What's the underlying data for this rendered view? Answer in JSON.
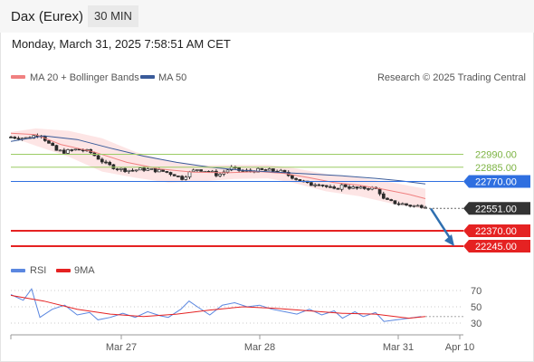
{
  "header": {
    "title": "Dax (Eurex)",
    "interval": "30 MIN",
    "timestamp": "Monday, March 31, 2025 7:58:51 AM CET"
  },
  "legend": {
    "ma20_bb": "MA 20 + Bollinger Bands",
    "ma50": "MA 50",
    "rsi": "RSI",
    "ma9": "9MA",
    "credit": "Research © 2025 Trading Central"
  },
  "colors": {
    "ma20": "#f08080",
    "bollinger_fill": "#fde0e0",
    "ma50": "#3a5b9a",
    "candle": "#2b2b2b",
    "pivot": "#2f6fe0",
    "resistance": "#9ccc65",
    "resistance_text": "#7cb342",
    "support": "#e52222",
    "current": "#333333",
    "forecast_arrow": "#2f6fb0",
    "rsi_line": "#5b87e0",
    "rsi_ma": "#e52222"
  },
  "chart_data": [
    {
      "type": "candlestick",
      "title": "Dax (Eurex)",
      "xlabel": "",
      "ylabel": "",
      "x_ticks": [
        "Mar 27",
        "Mar 28",
        "Mar 31",
        "Apr 10"
      ],
      "ylim": [
        22180,
        23200
      ],
      "levels": [
        {
          "name": "resistance_2",
          "value": 22990.0,
          "label": "22990.00",
          "kind": "resistance"
        },
        {
          "name": "resistance_1",
          "value": 22885.0,
          "label": "22885.00",
          "kind": "resistance"
        },
        {
          "name": "pivot",
          "value": 22770.0,
          "label": "22770.00",
          "kind": "pivot"
        },
        {
          "name": "current",
          "value": 22551.0,
          "label": "22551.00",
          "kind": "current"
        },
        {
          "name": "support_1",
          "value": 22370.0,
          "label": "22370.00",
          "kind": "support"
        },
        {
          "name": "support_2",
          "value": 22245.0,
          "label": "22245.00",
          "kind": "support"
        }
      ],
      "close_path": [
        [
          0,
          23130
        ],
        [
          4,
          23120
        ],
        [
          7,
          23160
        ],
        [
          9,
          23080
        ],
        [
          11,
          23020
        ],
        [
          13,
          23010
        ],
        [
          16,
          23030
        ],
        [
          19,
          23010
        ],
        [
          21,
          22960
        ],
        [
          23,
          22910
        ],
        [
          26,
          22870
        ],
        [
          29,
          22860
        ],
        [
          32,
          22870
        ],
        [
          35,
          22860
        ],
        [
          37,
          22850
        ],
        [
          40,
          22820
        ],
        [
          41,
          22790
        ],
        [
          43,
          22840
        ],
        [
          45,
          22870
        ],
        [
          48,
          22850
        ],
        [
          50,
          22820
        ],
        [
          53,
          22880
        ],
        [
          56,
          22850
        ],
        [
          59,
          22860
        ],
        [
          62,
          22860
        ],
        [
          65,
          22850
        ],
        [
          67,
          22820
        ],
        [
          69,
          22790
        ],
        [
          71,
          22760
        ],
        [
          72,
          22740
        ],
        [
          74,
          22760
        ],
        [
          76,
          22730
        ],
        [
          78,
          22700
        ],
        [
          80,
          22740
        ],
        [
          82,
          22720
        ],
        [
          84,
          22710
        ],
        [
          86,
          22720
        ],
        [
          88,
          22710
        ],
        [
          89,
          22680
        ],
        [
          90,
          22620
        ],
        [
          92,
          22600
        ],
        [
          94,
          22590
        ],
        [
          96,
          22575
        ],
        [
          98,
          22570
        ],
        [
          100,
          22575
        ]
      ],
      "ma20": [
        [
          0,
          23160
        ],
        [
          6,
          23150
        ],
        [
          12,
          23070
        ],
        [
          20,
          23010
        ],
        [
          28,
          22925
        ],
        [
          36,
          22870
        ],
        [
          44,
          22845
        ],
        [
          52,
          22840
        ],
        [
          60,
          22850
        ],
        [
          66,
          22835
        ],
        [
          72,
          22800
        ],
        [
          78,
          22760
        ],
        [
          84,
          22740
        ],
        [
          90,
          22705
        ],
        [
          96,
          22665
        ],
        [
          100,
          22630
        ]
      ],
      "ma50": [
        [
          0,
          23095
        ],
        [
          8,
          23140
        ],
        [
          16,
          23110
        ],
        [
          24,
          23040
        ],
        [
          32,
          22975
        ],
        [
          40,
          22925
        ],
        [
          48,
          22885
        ],
        [
          56,
          22860
        ],
        [
          64,
          22845
        ],
        [
          72,
          22830
        ],
        [
          80,
          22815
        ],
        [
          88,
          22795
        ],
        [
          94,
          22775
        ],
        [
          100,
          22750
        ]
      ],
      "bollinger_upper": [
        [
          0,
          23170
        ],
        [
          6,
          23200
        ],
        [
          14,
          23180
        ],
        [
          22,
          23120
        ],
        [
          30,
          23010
        ],
        [
          38,
          22935
        ],
        [
          46,
          22900
        ],
        [
          54,
          22905
        ],
        [
          62,
          22905
        ],
        [
          68,
          22880
        ],
        [
          76,
          22830
        ],
        [
          84,
          22800
        ],
        [
          92,
          22760
        ],
        [
          100,
          22710
        ]
      ],
      "bollinger_lower": [
        [
          0,
          23130
        ],
        [
          6,
          23060
        ],
        [
          14,
          22970
        ],
        [
          22,
          22850
        ],
        [
          30,
          22800
        ],
        [
          38,
          22760
        ],
        [
          46,
          22770
        ],
        [
          54,
          22790
        ],
        [
          62,
          22795
        ],
        [
          68,
          22760
        ],
        [
          76,
          22690
        ],
        [
          84,
          22650
        ],
        [
          92,
          22590
        ],
        [
          100,
          22545
        ]
      ],
      "forecast": {
        "from": 22550,
        "to": 22245
      }
    },
    {
      "type": "line",
      "title": "RSI",
      "xlabel": "",
      "ylabel": "",
      "ylim": [
        20,
        80
      ],
      "y_ticks": [
        70,
        50,
        30
      ],
      "series": [
        {
          "name": "RSI",
          "values": [
            [
              0,
              65
            ],
            [
              3,
              58
            ],
            [
              5,
              72
            ],
            [
              7,
              37
            ],
            [
              10,
              47
            ],
            [
              13,
              52
            ],
            [
              16,
              40
            ],
            [
              19,
              43
            ],
            [
              21,
              34
            ],
            [
              24,
              37
            ],
            [
              27,
              42
            ],
            [
              30,
              37
            ],
            [
              33,
              44
            ],
            [
              36,
              39
            ],
            [
              38,
              37
            ],
            [
              41,
              47
            ],
            [
              43,
              57
            ],
            [
              45,
              50
            ],
            [
              48,
              40
            ],
            [
              51,
              52
            ],
            [
              54,
              55
            ],
            [
              57,
              50
            ],
            [
              60,
              52
            ],
            [
              63,
              47
            ],
            [
              66,
              44
            ],
            [
              69,
              41
            ],
            [
              72,
              47
            ],
            [
              75,
              40
            ],
            [
              78,
              45
            ],
            [
              80,
              36
            ],
            [
              83,
              44
            ],
            [
              85,
              38
            ],
            [
              88,
              43
            ],
            [
              90,
              32
            ],
            [
              93,
              34
            ],
            [
              96,
              36
            ],
            [
              99,
              38
            ]
          ]
        },
        {
          "name": "9MA",
          "values": [
            [
              0,
              64
            ],
            [
              8,
              57
            ],
            [
              16,
              47
            ],
            [
              24,
              41
            ],
            [
              32,
              38
            ],
            [
              40,
              41
            ],
            [
              48,
              46
            ],
            [
              56,
              50
            ],
            [
              64,
              48
            ],
            [
              72,
              45
            ],
            [
              80,
              42
            ],
            [
              88,
              41
            ],
            [
              96,
              36
            ],
            [
              100,
              38
            ]
          ]
        }
      ]
    }
  ]
}
